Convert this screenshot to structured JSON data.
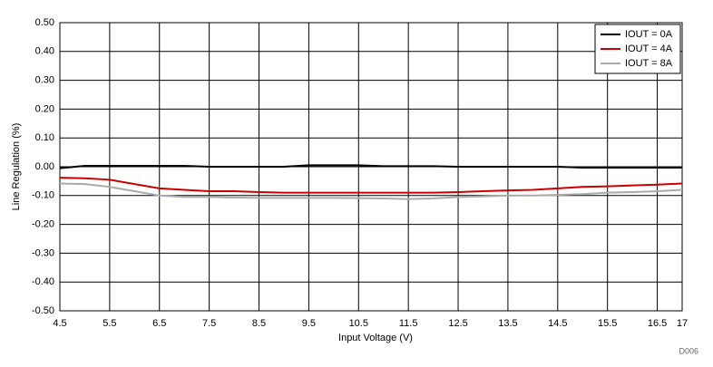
{
  "chart_data": {
    "type": "line",
    "xlabel": "Input Voltage (V)",
    "ylabel": "Line Regulation (%)",
    "annotation": "D006",
    "x": [
      4.5,
      5,
      5.5,
      6,
      6.5,
      7,
      7.5,
      8,
      8.5,
      9,
      9.5,
      10,
      10.5,
      11,
      11.5,
      12,
      12.5,
      13,
      13.5,
      14,
      14.5,
      15,
      15.5,
      16,
      16.5,
      17
    ],
    "series": [
      {
        "name": "IOUT = 0A",
        "color": "#000000",
        "values": [
          -0.005,
          0.003,
          0.003,
          0.003,
          0.003,
          0.003,
          0.0,
          0.0,
          0.0,
          0.0,
          0.005,
          0.005,
          0.005,
          0.002,
          0.002,
          0.002,
          0.0,
          0.0,
          0.0,
          0.0,
          0.0,
          -0.003,
          -0.003,
          -0.003,
          -0.003,
          -0.003
        ]
      },
      {
        "name": "IOUT = 4A",
        "color": "#cc0000",
        "values": [
          -0.038,
          -0.04,
          -0.045,
          -0.06,
          -0.075,
          -0.08,
          -0.085,
          -0.085,
          -0.088,
          -0.09,
          -0.09,
          -0.09,
          -0.09,
          -0.09,
          -0.09,
          -0.09,
          -0.088,
          -0.085,
          -0.082,
          -0.08,
          -0.075,
          -0.07,
          -0.068,
          -0.065,
          -0.062,
          -0.058
        ]
      },
      {
        "name": "IOUT = 8A",
        "color": "#aaaaaa",
        "values": [
          -0.058,
          -0.06,
          -0.07,
          -0.085,
          -0.1,
          -0.105,
          -0.105,
          -0.107,
          -0.108,
          -0.108,
          -0.108,
          -0.108,
          -0.109,
          -0.11,
          -0.112,
          -0.11,
          -0.105,
          -0.103,
          -0.1,
          -0.1,
          -0.098,
          -0.095,
          -0.09,
          -0.088,
          -0.085,
          -0.08
        ]
      }
    ],
    "xlim": [
      4.5,
      17
    ],
    "xticks": [
      4.5,
      5.5,
      6.5,
      7.5,
      8.5,
      9.5,
      10.5,
      11.5,
      12.5,
      13.5,
      14.5,
      15.5,
      16.5,
      17
    ],
    "ylim": [
      -0.5,
      0.5
    ],
    "yticks": [
      {
        "value": -0.5,
        "label": "-0.50"
      },
      {
        "value": -0.4,
        "label": "-0.40"
      },
      {
        "value": -0.3,
        "label": "-0.30"
      },
      {
        "value": -0.2,
        "label": "-0.20"
      },
      {
        "value": -0.1,
        "label": "-0.10"
      },
      {
        "value": 0,
        "label": "0.00"
      },
      {
        "value": 0.1,
        "label": "0.10"
      },
      {
        "value": 0.2,
        "label": "0.20"
      },
      {
        "value": 0.3,
        "label": "0.30"
      },
      {
        "value": 0.4,
        "label": "0.40"
      },
      {
        "value": 0.5,
        "label": "0.50"
      }
    ],
    "grid": true,
    "legend": "upper right"
  }
}
